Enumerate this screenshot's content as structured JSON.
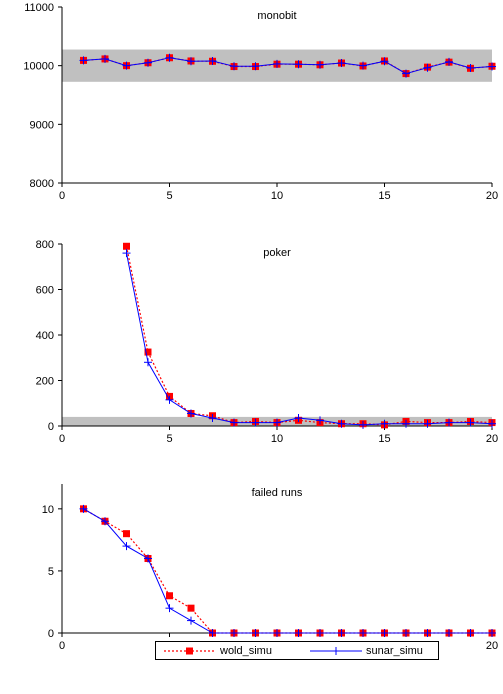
{
  "colors": {
    "wold": "#ff0000",
    "sunar": "#0000ff",
    "band": "#c0c0c0",
    "axis": "#000000"
  },
  "chart_data": [
    {
      "type": "line",
      "title": "monobit",
      "xlabel": "",
      "ylabel": "",
      "xlim": [
        0,
        20
      ],
      "ylim": [
        8000,
        11000
      ],
      "xticks": [
        0,
        5,
        10,
        15,
        20
      ],
      "yticks": [
        8000,
        9000,
        10000,
        11000
      ],
      "band": [
        9725,
        10275
      ],
      "grid": false,
      "x": [
        1,
        2,
        3,
        4,
        5,
        6,
        7,
        8,
        9,
        10,
        11,
        12,
        13,
        14,
        15,
        16,
        17,
        18,
        19,
        20
      ],
      "series": [
        {
          "name": "wold_simu",
          "values": [
            10090,
            10115,
            10000,
            10050,
            10135,
            10080,
            10075,
            9985,
            9985,
            10025,
            10025,
            10015,
            10045,
            9995,
            10080,
            9865,
            9975,
            10060,
            9955,
            9990
          ]
        },
        {
          "name": "sunar_simu",
          "values": [
            10090,
            10115,
            10000,
            10050,
            10135,
            10075,
            10080,
            9990,
            9990,
            10030,
            10025,
            10015,
            10045,
            10000,
            10075,
            9865,
            9965,
            10065,
            9960,
            9985
          ]
        }
      ]
    },
    {
      "type": "line",
      "title": "poker",
      "xlabel": "",
      "ylabel": "",
      "xlim": [
        0,
        20
      ],
      "ylim": [
        0,
        800
      ],
      "xticks": [
        0,
        5,
        10,
        15,
        20
      ],
      "yticks": [
        0,
        200,
        400,
        600,
        800
      ],
      "band": [
        0,
        40
      ],
      "grid": false,
      "x": [
        3,
        4,
        5,
        6,
        7,
        8,
        9,
        10,
        11,
        12,
        13,
        14,
        15,
        16,
        17,
        18,
        19,
        20
      ],
      "series": [
        {
          "name": "wold_simu",
          "values": [
            790,
            325,
            130,
            55,
            45,
            15,
            20,
            15,
            25,
            15,
            10,
            10,
            5,
            20,
            15,
            15,
            20,
            15
          ]
        },
        {
          "name": "sunar_simu",
          "values": [
            760,
            280,
            115,
            55,
            35,
            15,
            15,
            15,
            35,
            25,
            10,
            5,
            10,
            10,
            10,
            15,
            15,
            10
          ]
        }
      ]
    },
    {
      "type": "line",
      "title": "failed runs",
      "xlabel": "",
      "ylabel": "",
      "xlim": [
        0,
        20
      ],
      "ylim": [
        0,
        12
      ],
      "xticks": [
        0,
        5,
        10,
        15,
        20
      ],
      "yticks": [
        0,
        5,
        10
      ],
      "grid": false,
      "x": [
        1,
        2,
        3,
        4,
        5,
        6,
        7,
        8,
        9,
        10,
        11,
        12,
        13,
        14,
        15,
        16,
        17,
        18,
        19,
        20
      ],
      "series": [
        {
          "name": "wold_simu",
          "values": [
            10,
            9,
            8,
            6,
            3,
            2,
            0,
            0,
            0,
            0,
            0,
            0,
            0,
            0,
            0,
            0,
            0,
            0,
            0,
            0
          ]
        },
        {
          "name": "sunar_simu",
          "values": [
            10,
            9,
            7,
            6,
            2,
            1,
            0,
            0,
            0,
            0,
            0,
            0,
            0,
            0,
            0,
            0,
            0,
            0,
            0,
            0
          ]
        }
      ]
    }
  ],
  "legend": {
    "items": [
      "wold_simu",
      "sunar_simu"
    ]
  }
}
